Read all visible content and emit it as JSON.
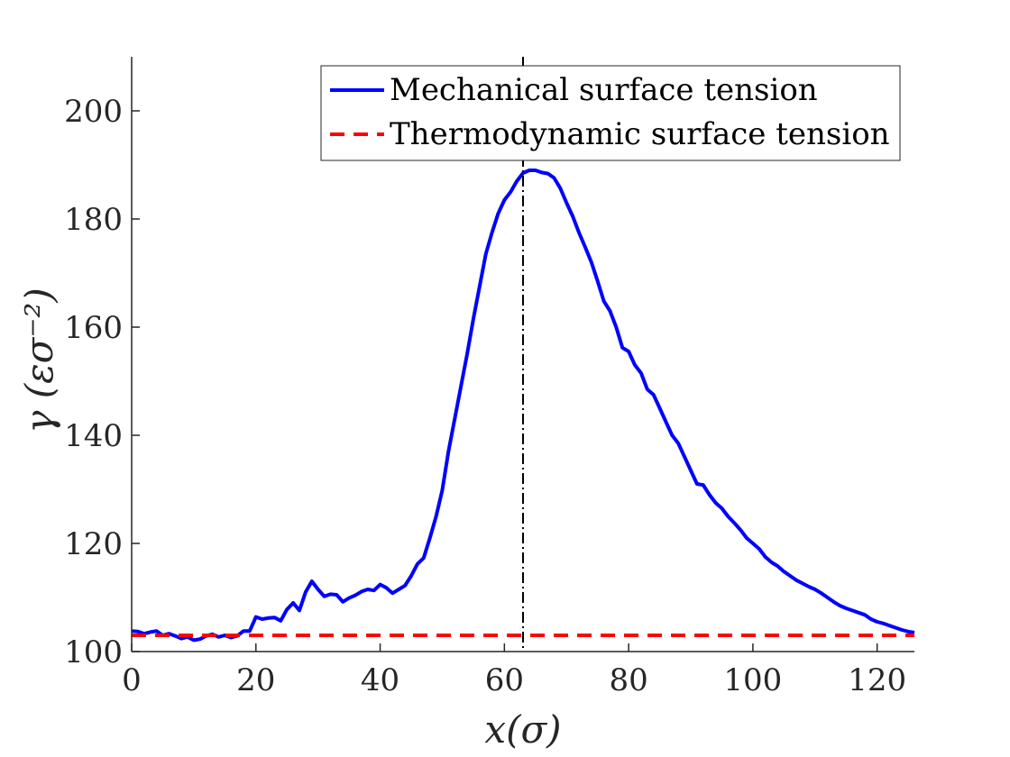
{
  "chart_data": {
    "type": "line",
    "title": "",
    "xlabel": "x(σ)",
    "ylabel": "γ (εσ⁻²)",
    "xlim": [
      0,
      126
    ],
    "ylim": [
      100,
      210
    ],
    "x_ticks": [
      0,
      20,
      40,
      60,
      80,
      100,
      120
    ],
    "y_ticks": [
      100,
      120,
      140,
      160,
      180,
      200
    ],
    "grid": false,
    "legend_position": "top-right",
    "vertical_marker_x": 63,
    "series": [
      {
        "name": "Mechanical surface tension",
        "style": "solid",
        "color": "#0000ff",
        "points": [
          [
            0,
            103.8
          ],
          [
            1,
            103.7
          ],
          [
            2,
            103.3
          ],
          [
            3,
            103.6
          ],
          [
            4,
            103.8
          ],
          [
            5,
            103.0
          ],
          [
            6,
            103.3
          ],
          [
            7,
            102.9
          ],
          [
            8,
            102.4
          ],
          [
            9,
            102.7
          ],
          [
            10,
            102.1
          ],
          [
            11,
            102.3
          ],
          [
            12,
            102.9
          ],
          [
            13,
            103.2
          ],
          [
            14,
            102.7
          ],
          [
            15,
            103.0
          ],
          [
            16,
            102.6
          ],
          [
            17,
            102.9
          ],
          [
            18,
            103.8
          ],
          [
            19,
            103.8
          ],
          [
            20,
            106.4
          ],
          [
            21,
            106.0
          ],
          [
            22,
            106.2
          ],
          [
            23,
            106.3
          ],
          [
            24,
            105.7
          ],
          [
            25,
            107.8
          ],
          [
            26,
            109.0
          ],
          [
            27,
            107.6
          ],
          [
            28,
            111.0
          ],
          [
            29,
            113.0
          ],
          [
            30,
            111.5
          ],
          [
            31,
            110.2
          ],
          [
            32,
            110.6
          ],
          [
            33,
            110.5
          ],
          [
            34,
            109.2
          ],
          [
            35,
            109.9
          ],
          [
            36,
            110.4
          ],
          [
            37,
            111.1
          ],
          [
            38,
            111.5
          ],
          [
            39,
            111.3
          ],
          [
            40,
            112.4
          ],
          [
            41,
            111.8
          ],
          [
            42,
            110.8
          ],
          [
            43,
            111.5
          ],
          [
            44,
            112.2
          ],
          [
            45,
            114.0
          ],
          [
            46,
            116.2
          ],
          [
            47,
            117.3
          ],
          [
            48,
            121.0
          ],
          [
            49,
            125.0
          ],
          [
            50,
            129.8
          ],
          [
            51,
            137.0
          ],
          [
            52,
            143.0
          ],
          [
            53,
            149.0
          ],
          [
            54,
            155.0
          ],
          [
            55,
            161.5
          ],
          [
            56,
            167.5
          ],
          [
            57,
            173.5
          ],
          [
            58,
            177.5
          ],
          [
            59,
            181.0
          ],
          [
            60,
            183.5
          ],
          [
            61,
            185.0
          ],
          [
            62,
            187.0
          ],
          [
            63,
            188.5
          ],
          [
            64,
            189.0
          ],
          [
            65,
            189.0
          ],
          [
            66,
            188.6
          ],
          [
            67,
            188.4
          ],
          [
            68,
            187.6
          ],
          [
            69,
            185.7
          ],
          [
            70,
            183.0
          ],
          [
            71,
            180.5
          ],
          [
            72,
            177.5
          ],
          [
            73,
            174.8
          ],
          [
            74,
            172.0
          ],
          [
            75,
            168.5
          ],
          [
            76,
            164.8
          ],
          [
            77,
            163.0
          ],
          [
            78,
            160.0
          ],
          [
            79,
            156.2
          ],
          [
            80,
            155.5
          ],
          [
            81,
            153.0
          ],
          [
            82,
            151.5
          ],
          [
            83,
            148.5
          ],
          [
            84,
            147.5
          ],
          [
            85,
            145.0
          ],
          [
            86,
            142.5
          ],
          [
            87,
            140.0
          ],
          [
            88,
            138.5
          ],
          [
            89,
            136.0
          ],
          [
            90,
            133.5
          ],
          [
            91,
            131.0
          ],
          [
            92,
            130.8
          ],
          [
            93,
            129.0
          ],
          [
            94,
            127.5
          ],
          [
            95,
            126.5
          ],
          [
            96,
            125.0
          ],
          [
            97,
            123.8
          ],
          [
            98,
            122.5
          ],
          [
            99,
            121.0
          ],
          [
            100,
            120.0
          ],
          [
            101,
            119.0
          ],
          [
            102,
            117.5
          ],
          [
            103,
            116.5
          ],
          [
            104,
            115.8
          ],
          [
            105,
            114.8
          ],
          [
            106,
            114.0
          ],
          [
            107,
            113.2
          ],
          [
            108,
            112.6
          ],
          [
            109,
            112.0
          ],
          [
            110,
            111.5
          ],
          [
            111,
            110.8
          ],
          [
            112,
            110.0
          ],
          [
            113,
            109.2
          ],
          [
            114,
            108.5
          ],
          [
            115,
            108.0
          ],
          [
            116,
            107.6
          ],
          [
            117,
            107.2
          ],
          [
            118,
            106.8
          ],
          [
            119,
            106.0
          ],
          [
            120,
            105.5
          ],
          [
            121,
            105.2
          ],
          [
            122,
            104.8
          ],
          [
            123,
            104.4
          ],
          [
            124,
            104.0
          ],
          [
            125,
            103.7
          ],
          [
            126,
            103.5
          ]
        ]
      },
      {
        "name": "Thermodynamic surface tension",
        "style": "dashed",
        "color": "#ff0000",
        "points": [
          [
            0,
            103.0
          ],
          [
            126,
            103.0
          ]
        ]
      }
    ]
  }
}
